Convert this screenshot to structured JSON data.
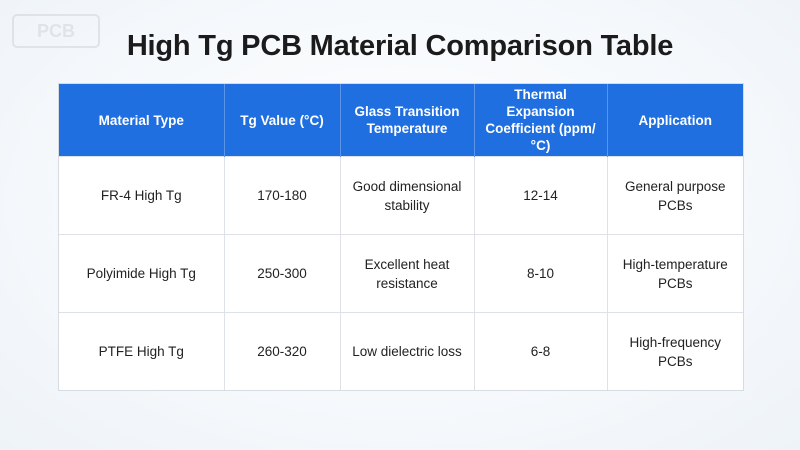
{
  "page": {
    "title": "High Tg PCB Material Comparison Table",
    "watermark_text": "PCB"
  },
  "colors": {
    "header_bg": "#1f6fe0",
    "header_text": "#ffffff",
    "body_text": "#222222",
    "border": "#dde2e8",
    "page_bg": "#f4f7fb"
  },
  "table": {
    "headers": [
      "Material Type",
      "Tg Value (°C)",
      "Glass Transition Temperature",
      "Thermal Expansion Coefficient (ppm/°C)",
      "Application"
    ],
    "rows": [
      [
        "FR-4 High Tg",
        "170-180",
        "Good dimensional stability",
        "12-14",
        "General purpose PCBs"
      ],
      [
        "Polyimide High Tg",
        "250-300",
        "Excellent heat resistance",
        "8-10",
        "High-temperature PCBs"
      ],
      [
        "PTFE High Tg",
        "260-320",
        "Low dielectric loss",
        "6-8",
        "High-frequency PCBs"
      ]
    ]
  }
}
